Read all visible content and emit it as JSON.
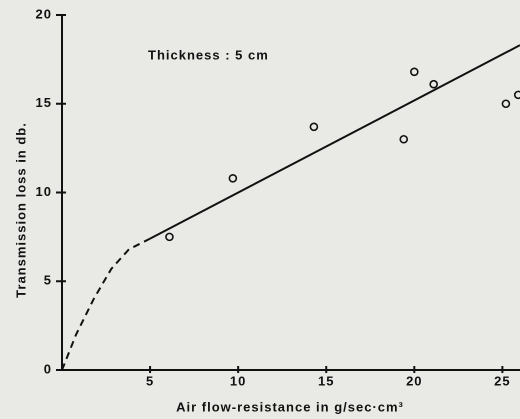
{
  "chart_data": {
    "type": "scatter",
    "annotation": "Thickness : 5 cm",
    "x_label": "Air flow-resistance in g/sec·cm³",
    "y_label": "Transmission loss in db.",
    "xlim": [
      0,
      26
    ],
    "ylim": [
      0,
      20
    ],
    "xticks": [
      5,
      10,
      15,
      20,
      25
    ],
    "yticks": [
      0,
      5,
      10,
      15,
      20
    ],
    "color": "#111111",
    "series": [
      {
        "style": "markers",
        "x": [
          6.1,
          9.7,
          14.3,
          19.4,
          20.0,
          21.1,
          25.2,
          25.9
        ],
        "values": [
          7.5,
          10.8,
          13.7,
          13.0,
          16.8,
          16.1,
          15.0,
          15.5
        ]
      },
      {
        "style": "solid",
        "x": [
          5,
          26
        ],
        "values": [
          7.4,
          18.3
        ]
      },
      {
        "style": "dashed",
        "x": [
          0,
          0.8,
          1.8,
          2.8,
          3.8,
          5
        ],
        "values": [
          0,
          2.0,
          4.0,
          5.7,
          6.8,
          7.4
        ]
      }
    ]
  }
}
